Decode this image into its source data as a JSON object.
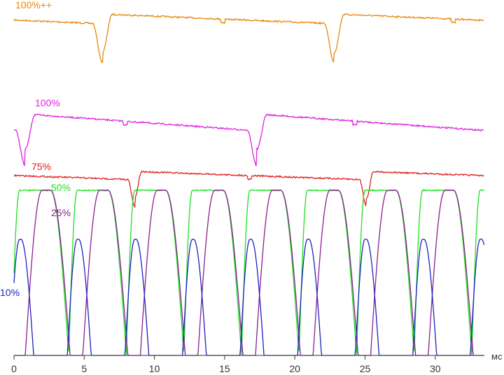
{
  "chart_data": {
    "type": "line",
    "xlabel": "",
    "x_unit": "мс",
    "xlim": [
      0,
      33.5
    ],
    "ylim": [
      0,
      100
    ],
    "x_ticks": [
      0,
      5,
      10,
      15,
      20,
      25,
      30
    ],
    "x_tick_labels": [
      "0",
      "5",
      "10",
      "15",
      "20",
      "25",
      "30"
    ],
    "grid": false,
    "legend": "inline labels near each trace",
    "series": [
      {
        "name": "100%++",
        "color": "#e8880a"
      },
      {
        "name": "100%",
        "color": "#e020e0"
      },
      {
        "name": "75%",
        "color": "#e02020"
      },
      {
        "name": "50%",
        "color": "#20e020"
      },
      {
        "name": "25%",
        "color": "#8a2090"
      },
      {
        "name": "10%",
        "color": "#2020c0"
      }
    ]
  }
}
